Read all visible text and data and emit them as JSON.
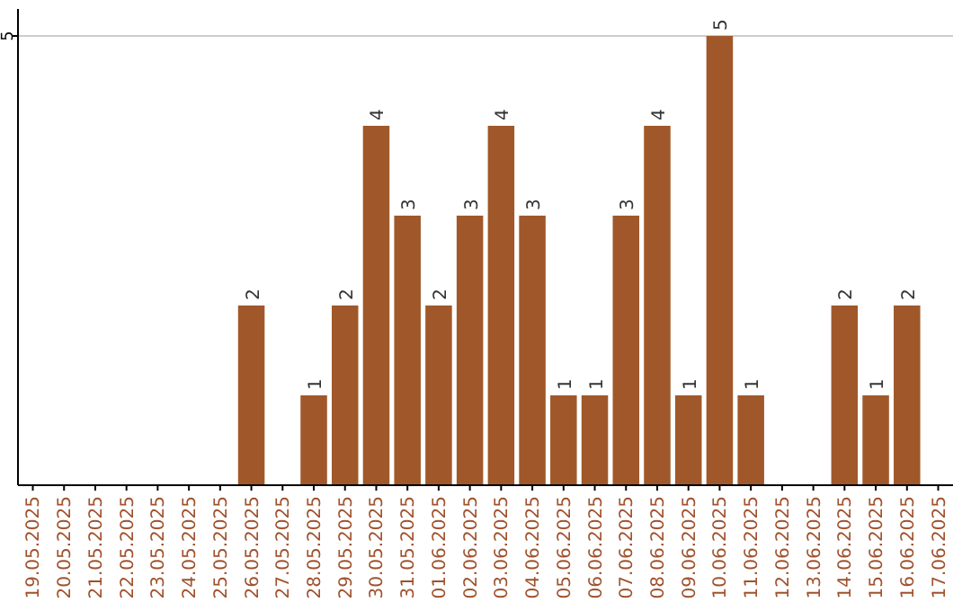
{
  "chart_data": {
    "type": "bar",
    "categories": [
      "19.05.2025",
      "20.05.2025",
      "21.05.2025",
      "22.05.2025",
      "23.05.2025",
      "24.05.2025",
      "25.05.2025",
      "26.05.2025",
      "27.05.2025",
      "28.05.2025",
      "29.05.2025",
      "30.05.2025",
      "31.05.2025",
      "01.06.2025",
      "02.06.2025",
      "03.06.2025",
      "04.06.2025",
      "05.06.2025",
      "06.06.2025",
      "07.06.2025",
      "08.06.2025",
      "09.06.2025",
      "10.06.2025",
      "11.06.2025",
      "12.06.2025",
      "13.06.2025",
      "14.06.2025",
      "15.06.2025",
      "16.06.2025",
      "17.06.2025"
    ],
    "values": [
      0,
      0,
      0,
      0,
      0,
      0,
      0,
      2,
      0,
      1,
      2,
      4,
      3,
      2,
      3,
      4,
      3,
      1,
      1,
      3,
      4,
      1,
      5,
      1,
      0,
      0,
      2,
      1,
      2,
      0
    ],
    "value_labels": [
      null,
      null,
      null,
      null,
      null,
      null,
      null,
      "2",
      null,
      "1",
      "2",
      "4",
      "3",
      "2",
      "3",
      "4",
      "3",
      "1",
      "1",
      "3",
      "4",
      "1",
      "5",
      "1",
      null,
      null,
      "2",
      "1",
      "2",
      null
    ],
    "color": "#a0582a",
    "ylim": [
      0,
      5.3
    ],
    "yticks": [
      5
    ],
    "grid": "y"
  }
}
